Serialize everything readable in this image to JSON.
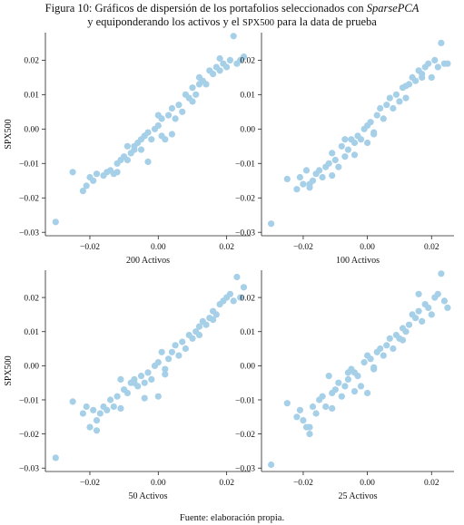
{
  "caption": {
    "line1_prefix": "Figura 10: Gráficos de dispersión de los portafolios seleccionados con ",
    "line1_method": "SparsePCA",
    "line2_prefix": "y equiponderando los activos y el ",
    "line2_index": "SPX500",
    "line2_suffix": " para la data de prueba"
  },
  "source_note": "Fuente: elaboración propia.",
  "colors": {
    "point": "#a6cfe8",
    "axis": "#222222"
  },
  "chart_data": [
    {
      "type": "scatter",
      "xlabel": "200 Activos",
      "ylabel": "SPX500",
      "xlim": [
        -0.033,
        0.027
      ],
      "ylim": [
        -0.031,
        0.028
      ],
      "xticks": [
        -0.02,
        0.0,
        0.02
      ],
      "yticks": [
        -0.03,
        -0.02,
        -0.01,
        0.0,
        0.01,
        0.02
      ],
      "x": [
        -0.03,
        -0.025,
        -0.022,
        -0.021,
        -0.02,
        -0.018,
        -0.016,
        -0.015,
        -0.014,
        -0.013,
        -0.012,
        -0.011,
        -0.01,
        -0.009,
        -0.008,
        -0.007,
        -0.007,
        -0.006,
        -0.005,
        -0.005,
        -0.004,
        -0.003,
        -0.002,
        -0.001,
        0.0,
        0.0,
        0.001,
        0.001,
        0.002,
        0.003,
        0.004,
        0.005,
        0.006,
        0.007,
        0.008,
        0.009,
        0.01,
        0.01,
        0.011,
        0.012,
        0.013,
        0.014,
        0.015,
        0.016,
        0.017,
        0.018,
        0.019,
        0.02,
        0.021,
        0.022,
        0.023,
        0.024,
        0.025,
        -0.019,
        -0.012,
        -0.003,
        0.004,
        0.012,
        0.018,
        -0.009
      ],
      "y": [
        -0.027,
        -0.0125,
        -0.018,
        -0.0165,
        -0.014,
        -0.013,
        -0.0135,
        -0.0125,
        -0.012,
        -0.013,
        -0.01,
        -0.009,
        -0.008,
        -0.009,
        -0.007,
        -0.006,
        -0.005,
        -0.004,
        -0.003,
        -0.006,
        -0.002,
        -0.001,
        -0.003,
        0.0,
        0.001,
        0.004,
        -0.002,
        0.003,
        -0.003,
        0.004,
        0.006,
        0.003,
        0.007,
        0.005,
        0.01,
        0.009,
        0.008,
        0.012,
        0.01,
        0.013,
        0.014,
        0.013,
        0.017,
        0.016,
        0.018,
        0.017,
        0.019,
        0.018,
        0.02,
        0.027,
        0.019,
        0.02,
        0.021,
        -0.015,
        -0.0125,
        -0.0095,
        -0.0015,
        0.015,
        0.0205,
        -0.005
      ]
    },
    {
      "type": "scatter",
      "xlabel": "100 Activos",
      "ylabel": "",
      "xlim": [
        -0.033,
        0.027
      ],
      "ylim": [
        -0.031,
        0.028
      ],
      "xticks": [
        -0.02,
        0.0,
        0.02
      ],
      "yticks": [
        -0.03,
        -0.02,
        -0.01,
        0.0,
        0.01,
        0.02
      ],
      "x": [
        -0.03,
        -0.025,
        -0.022,
        -0.021,
        -0.02,
        -0.019,
        -0.018,
        -0.017,
        -0.016,
        -0.015,
        -0.014,
        -0.013,
        -0.012,
        -0.011,
        -0.01,
        -0.009,
        -0.008,
        -0.007,
        -0.006,
        -0.005,
        -0.004,
        -0.003,
        -0.002,
        -0.001,
        0.0,
        0.0,
        0.001,
        0.002,
        0.003,
        0.004,
        0.005,
        0.006,
        0.007,
        0.008,
        0.009,
        0.01,
        0.011,
        0.012,
        0.013,
        0.014,
        0.015,
        0.016,
        0.017,
        0.018,
        0.019,
        0.02,
        0.021,
        0.022,
        0.023,
        0.024,
        0.025,
        -0.018,
        -0.011,
        -0.004,
        0.002,
        0.012,
        0.017,
        -0.007
      ],
      "y": [
        -0.0275,
        -0.0145,
        -0.0175,
        -0.014,
        -0.016,
        -0.012,
        -0.017,
        -0.015,
        -0.013,
        -0.012,
        -0.014,
        -0.011,
        -0.01,
        -0.007,
        -0.009,
        -0.011,
        -0.005,
        -0.008,
        -0.006,
        -0.003,
        -0.004,
        -0.002,
        -0.003,
        0.0,
        0.001,
        -0.004,
        0.002,
        -0.001,
        0.004,
        0.006,
        0.003,
        0.007,
        0.009,
        0.006,
        0.01,
        0.008,
        0.012,
        0.009,
        0.013,
        0.015,
        0.014,
        0.017,
        0.016,
        0.018,
        0.019,
        0.015,
        0.02,
        0.018,
        0.025,
        0.019,
        0.019,
        -0.016,
        -0.0135,
        -0.0075,
        -0.0015,
        0.0125,
        0.015,
        -0.003
      ]
    },
    {
      "type": "scatter",
      "xlabel": "50 Activos",
      "ylabel": "SPX500",
      "xlim": [
        -0.033,
        0.027
      ],
      "ylim": [
        -0.031,
        0.028
      ],
      "xticks": [
        -0.02,
        0.0,
        0.02
      ],
      "yticks": [
        -0.03,
        -0.02,
        -0.01,
        0.0,
        0.01,
        0.02
      ],
      "x": [
        -0.03,
        -0.025,
        -0.022,
        -0.021,
        -0.02,
        -0.019,
        -0.018,
        -0.017,
        -0.016,
        -0.015,
        -0.014,
        -0.013,
        -0.012,
        -0.011,
        -0.01,
        -0.009,
        -0.008,
        -0.007,
        -0.006,
        -0.005,
        -0.004,
        -0.003,
        -0.002,
        -0.001,
        0.0,
        0.0,
        0.001,
        0.002,
        0.003,
        0.004,
        0.005,
        0.006,
        0.007,
        0.008,
        0.009,
        0.01,
        0.011,
        0.012,
        0.013,
        0.014,
        0.015,
        0.016,
        0.017,
        0.018,
        0.019,
        0.02,
        0.021,
        0.022,
        0.023,
        0.024,
        0.025,
        -0.018,
        -0.011,
        -0.004,
        0.002,
        0.012,
        0.016,
        -0.007
      ],
      "y": [
        -0.027,
        -0.0105,
        -0.014,
        -0.012,
        -0.018,
        -0.013,
        -0.016,
        -0.014,
        -0.012,
        -0.013,
        -0.01,
        -0.012,
        -0.009,
        -0.004,
        -0.007,
        -0.008,
        -0.005,
        -0.004,
        -0.006,
        -0.003,
        -0.005,
        -0.002,
        -0.004,
        0.0,
        0.001,
        -0.009,
        0.004,
        -0.001,
        0.002,
        0.004,
        0.006,
        0.003,
        0.007,
        0.005,
        0.009,
        0.008,
        0.01,
        0.009,
        0.013,
        0.012,
        0.014,
        0.016,
        0.015,
        0.018,
        0.019,
        0.02,
        0.021,
        0.019,
        0.026,
        0.02,
        0.023,
        -0.019,
        -0.0125,
        -0.0095,
        -0.0025,
        0.0115,
        0.0135,
        -0.005
      ]
    },
    {
      "type": "scatter",
      "xlabel": "25 Activos",
      "ylabel": "",
      "xlim": [
        -0.033,
        0.027
      ],
      "ylim": [
        -0.031,
        0.028
      ],
      "xticks": [
        -0.02,
        0.0,
        0.02
      ],
      "yticks": [
        -0.03,
        -0.02,
        -0.01,
        0.0,
        0.01,
        0.02
      ],
      "x": [
        -0.03,
        -0.025,
        -0.022,
        -0.021,
        -0.02,
        -0.019,
        -0.018,
        -0.017,
        -0.016,
        -0.015,
        -0.014,
        -0.013,
        -0.012,
        -0.011,
        -0.01,
        -0.009,
        -0.008,
        -0.007,
        -0.006,
        -0.005,
        -0.004,
        -0.003,
        -0.002,
        -0.001,
        0.0,
        0.0,
        0.001,
        0.002,
        0.003,
        0.004,
        0.005,
        0.006,
        0.007,
        0.008,
        0.009,
        0.01,
        0.011,
        0.012,
        0.013,
        0.014,
        0.015,
        0.016,
        0.017,
        0.018,
        0.019,
        0.02,
        0.021,
        0.022,
        0.023,
        0.024,
        0.025,
        -0.018,
        -0.011,
        -0.004,
        0.002,
        0.011,
        0.016,
        -0.006
      ],
      "y": [
        -0.029,
        -0.011,
        -0.015,
        -0.013,
        -0.016,
        -0.018,
        -0.02,
        -0.012,
        -0.014,
        -0.01,
        -0.009,
        -0.012,
        -0.003,
        -0.008,
        -0.007,
        -0.005,
        -0.009,
        -0.006,
        -0.004,
        -0.001,
        -0.002,
        -0.003,
        -0.006,
        0.001,
        0.003,
        -0.008,
        0.002,
        -0.001,
        0.004,
        0.005,
        0.003,
        0.006,
        0.008,
        0.005,
        0.009,
        0.008,
        0.011,
        0.01,
        0.012,
        0.015,
        0.014,
        0.016,
        0.013,
        0.018,
        0.017,
        0.015,
        0.02,
        0.021,
        0.027,
        0.019,
        0.017,
        -0.018,
        -0.0125,
        -0.0075,
        -0.0005,
        0.0075,
        0.021,
        -0.002
      ]
    }
  ]
}
